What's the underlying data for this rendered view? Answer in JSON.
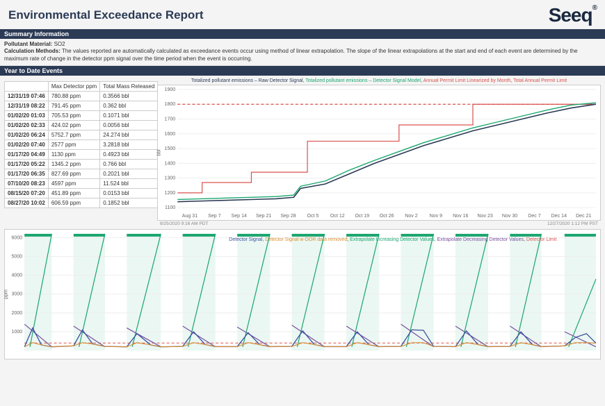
{
  "title": "Environmental Exceedance Report",
  "logo_text": "Seeq",
  "sections": {
    "summary": "Summary Information",
    "ytd": "Year to Date  Events"
  },
  "summary": {
    "pollutant_label": "Pollutant Material:",
    "pollutant_value": "SO2",
    "calc_label": "Calculation Methods:",
    "calc_value": "The values reported are automatically calculated as exceedance events occur using method of linear extrapolation. The slope of the linear extrapolations at the start and end of each event are determined by the maximum rate of change in the detector ppm signal over the time period when the event is occurring."
  },
  "events_table": {
    "col_date": "",
    "col_max": "Max Detector ppm",
    "col_mass": "Total Mass Released",
    "rows": [
      {
        "dt": "12/31/19 07:46",
        "max": "780.88 ppm",
        "mass": "0.3566 bbl"
      },
      {
        "dt": "12/31/19 08:22",
        "max": "791.45 ppm",
        "mass": "0.362 bbl"
      },
      {
        "dt": "01/02/20 01:03",
        "max": "705.53 ppm",
        "mass": "0.1071 bbl"
      },
      {
        "dt": "01/02/20 02:33",
        "max": "424.02 ppm",
        "mass": "0.0056 bbl"
      },
      {
        "dt": "01/02/20 06:24",
        "max": "5752.7 ppm",
        "mass": "24.274 bbl"
      },
      {
        "dt": "01/02/20 07:40",
        "max": "2577 ppm",
        "mass": "3.2818 bbl"
      },
      {
        "dt": "01/17/20 04:49",
        "max": "1130 ppm",
        "mass": "0.4923 bbl"
      },
      {
        "dt": "01/17/20 05:22",
        "max": "1345.2 ppm",
        "mass": "0.766 bbl"
      },
      {
        "dt": "01/17/20 06:35",
        "max": "827.69 ppm",
        "mass": "0.2021 bbl"
      },
      {
        "dt": "07/10/20 08:23",
        "max": "4597 ppm",
        "mass": "11.524 bbl"
      },
      {
        "dt": "08/15/20 07:20",
        "max": "451.89 ppm",
        "mass": "0.0153 bbl"
      },
      {
        "dt": "08/27/20 10:02",
        "max": "606.59 ppm",
        "mass": "0.1852 bbl"
      }
    ]
  },
  "top_chart": {
    "legend": [
      {
        "label": "Totalized pollutant emissions – Raw Detector Signal",
        "color": "#2b3a55"
      },
      {
        "label": "Totalized pollutant emissions – Detector Signal Model",
        "color": "#1aa66f"
      },
      {
        "label": "Annual Permit Limit Linearized by Month",
        "color": "#d9534f"
      },
      {
        "label": "Total Annual Permit Limit",
        "color": "#d9534f"
      }
    ],
    "y_label": "bbl",
    "y_ticks": [
      "1100",
      "1200",
      "1300",
      "1400",
      "1500",
      "1600",
      "1700",
      "1800",
      "1900"
    ],
    "x_ticks": [
      "Aug 31",
      "Sep 7",
      "Sep 14",
      "Sep 21",
      "Sep 28",
      "Oct 5",
      "Oct 12",
      "Oct 19",
      "Oct 26",
      "Nov 2",
      "Nov 9",
      "Nov 16",
      "Nov 23",
      "Nov 30",
      "Dec 7",
      "Dec 14",
      "Dec 21"
    ],
    "time_left": "8/25/2020 9:16 AM  PDT",
    "time_right": "12/27/2020 1:12 PM  PST",
    "limit_y": 1800,
    "series_raw": [
      [
        0,
        1140
      ],
      [
        36,
        1145
      ],
      [
        72,
        1150
      ],
      [
        108,
        1155
      ],
      [
        144,
        1160
      ],
      [
        170,
        1170
      ],
      [
        180,
        1230
      ],
      [
        216,
        1260
      ],
      [
        252,
        1330
      ],
      [
        288,
        1400
      ],
      [
        324,
        1460
      ],
      [
        360,
        1520
      ],
      [
        396,
        1570
      ],
      [
        432,
        1620
      ],
      [
        468,
        1660
      ],
      [
        504,
        1700
      ],
      [
        540,
        1740
      ],
      [
        576,
        1775
      ],
      [
        612,
        1800
      ]
    ],
    "series_model": [
      [
        0,
        1155
      ],
      [
        36,
        1160
      ],
      [
        72,
        1165
      ],
      [
        108,
        1170
      ],
      [
        144,
        1175
      ],
      [
        170,
        1185
      ],
      [
        180,
        1245
      ],
      [
        216,
        1280
      ],
      [
        252,
        1355
      ],
      [
        288,
        1420
      ],
      [
        324,
        1480
      ],
      [
        360,
        1540
      ],
      [
        396,
        1590
      ],
      [
        432,
        1640
      ],
      [
        468,
        1680
      ],
      [
        504,
        1720
      ],
      [
        540,
        1760
      ],
      [
        576,
        1795
      ],
      [
        612,
        1810
      ]
    ],
    "series_step": [
      [
        0,
        1200
      ],
      [
        36,
        1200
      ],
      [
        36,
        1270
      ],
      [
        108,
        1270
      ],
      [
        108,
        1340
      ],
      [
        190,
        1340
      ],
      [
        190,
        1550
      ],
      [
        324,
        1550
      ],
      [
        324,
        1660
      ],
      [
        432,
        1660
      ],
      [
        432,
        1800
      ],
      [
        612,
        1800
      ]
    ]
  },
  "bottom_chart": {
    "legend": [
      {
        "label": "Detector Signal",
        "color": "#3a4fa0"
      },
      {
        "label": "Detector Signal w OOR data removed",
        "color": "#d98b2e"
      },
      {
        "label": "Extrapolate Increasing Detector Values",
        "color": "#1aa66f"
      },
      {
        "label": "Extrapolate Decreasing Detector Values",
        "color": "#7a4fa0"
      },
      {
        "label": "Detector Limit",
        "color": "#d9534f"
      }
    ],
    "y_label": "ppm",
    "y_ticks": [
      "1000",
      "2000",
      "3000",
      "4000",
      "5000",
      "6000"
    ],
    "limit_y": 400,
    "bands": [
      [
        0,
        40
      ],
      [
        72,
        118
      ],
      [
        150,
        200
      ],
      [
        232,
        280
      ],
      [
        312,
        360
      ],
      [
        392,
        440
      ],
      [
        472,
        520
      ],
      [
        552,
        600
      ],
      [
        632,
        680
      ],
      [
        712,
        758
      ],
      [
        792,
        838
      ]
    ],
    "series_signal": [
      [
        0,
        200
      ],
      [
        12,
        1200
      ],
      [
        25,
        300
      ],
      [
        40,
        200
      ],
      [
        72,
        250
      ],
      [
        85,
        1100
      ],
      [
        100,
        350
      ],
      [
        118,
        220
      ],
      [
        150,
        200
      ],
      [
        165,
        900
      ],
      [
        185,
        300
      ],
      [
        200,
        200
      ],
      [
        232,
        220
      ],
      [
        248,
        1000
      ],
      [
        265,
        320
      ],
      [
        280,
        210
      ],
      [
        312,
        210
      ],
      [
        328,
        950
      ],
      [
        345,
        310
      ],
      [
        360,
        210
      ],
      [
        392,
        220
      ],
      [
        408,
        1050
      ],
      [
        425,
        320
      ],
      [
        440,
        210
      ],
      [
        472,
        210
      ],
      [
        488,
        1000
      ],
      [
        505,
        310
      ],
      [
        520,
        210
      ],
      [
        552,
        220
      ],
      [
        568,
        1100
      ],
      [
        585,
        1080
      ],
      [
        600,
        220
      ],
      [
        632,
        210
      ],
      [
        648,
        1050
      ],
      [
        665,
        320
      ],
      [
        680,
        210
      ],
      [
        712,
        220
      ],
      [
        728,
        1000
      ],
      [
        745,
        310
      ],
      [
        758,
        210
      ],
      [
        792,
        250
      ],
      [
        808,
        700
      ],
      [
        824,
        900
      ],
      [
        838,
        400
      ]
    ],
    "series_inc": [
      [
        8,
        200
      ],
      [
        40,
        6200
      ],
      [
        80,
        200
      ],
      [
        118,
        6200
      ],
      [
        158,
        200
      ],
      [
        200,
        6200
      ],
      [
        240,
        200
      ],
      [
        280,
        6200
      ],
      [
        320,
        200
      ],
      [
        360,
        6200
      ],
      [
        400,
        200
      ],
      [
        440,
        6200
      ],
      [
        480,
        200
      ],
      [
        520,
        6200
      ],
      [
        560,
        200
      ],
      [
        600,
        6200
      ],
      [
        640,
        200
      ],
      [
        680,
        6200
      ],
      [
        720,
        200
      ],
      [
        758,
        6200
      ],
      [
        798,
        200
      ],
      [
        838,
        3800
      ]
    ],
    "series_dec": [
      [
        0,
        1400
      ],
      [
        40,
        200
      ],
      [
        72,
        1300
      ],
      [
        118,
        200
      ],
      [
        150,
        1200
      ],
      [
        200,
        200
      ],
      [
        232,
        1300
      ],
      [
        280,
        200
      ],
      [
        312,
        1250
      ],
      [
        360,
        200
      ],
      [
        392,
        1350
      ],
      [
        440,
        200
      ],
      [
        472,
        1300
      ],
      [
        520,
        200
      ],
      [
        552,
        1400
      ],
      [
        600,
        200
      ],
      [
        632,
        1300
      ],
      [
        680,
        200
      ],
      [
        712,
        1300
      ],
      [
        758,
        200
      ],
      [
        792,
        1000
      ],
      [
        838,
        200
      ]
    ]
  }
}
